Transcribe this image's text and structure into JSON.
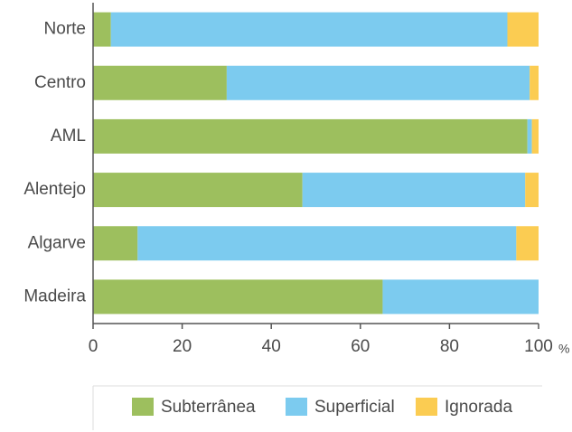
{
  "chart_data": {
    "type": "stacked_barh",
    "categories": [
      "Norte",
      "Centro",
      "AML",
      "Alentejo",
      "Algarve",
      "Madeira"
    ],
    "series": [
      {
        "name": "Subterrânea",
        "color": "#9dbf5e",
        "values": [
          4,
          30,
          97.5,
          47,
          10,
          65
        ]
      },
      {
        "name": "Superficial",
        "color": "#7ccbef",
        "values": [
          89,
          68,
          1,
          50,
          85,
          35
        ]
      },
      {
        "name": "Ignorada",
        "color": "#fbcc52",
        "values": [
          7,
          2,
          1.5,
          3,
          5,
          0
        ]
      }
    ],
    "xlim": [
      0,
      100
    ],
    "xticks": [
      0,
      20,
      40,
      60,
      80,
      100
    ],
    "xlabel": "%",
    "grid": false,
    "legend": "bottom"
  }
}
